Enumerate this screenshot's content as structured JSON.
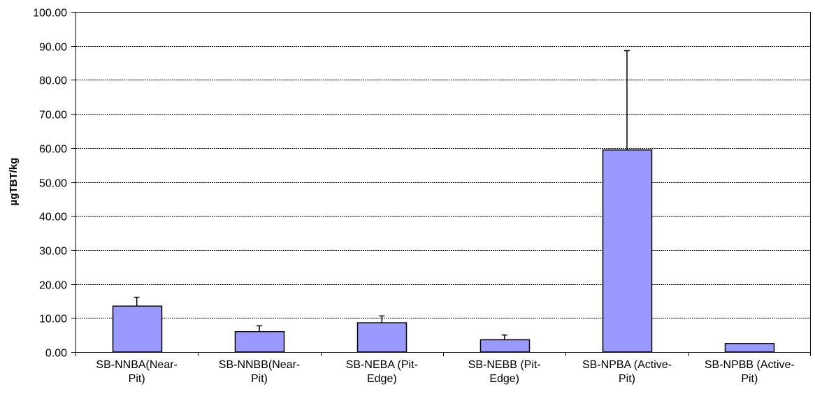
{
  "chart_data": {
    "type": "bar",
    "title": "",
    "xlabel": "",
    "ylabel": "µgTBT/kg",
    "ylim": [
      0,
      100
    ],
    "yticks": [
      "0.00",
      "10.00",
      "20.00",
      "30.00",
      "40.00",
      "50.00",
      "60.00",
      "70.00",
      "80.00",
      "90.00",
      "100.00"
    ],
    "categories": [
      [
        "SB-NNBA(Near-",
        "Pit)"
      ],
      [
        "SB-NNBB(Near-",
        "Pit)"
      ],
      [
        "SB-NEBA (Pit-",
        "Edge)"
      ],
      [
        "SB-NEBB (Pit-",
        "Edge)"
      ],
      [
        "SB-NPBA (Active-",
        "Pit)"
      ],
      [
        "SB-NPBB (Active-",
        "Pit)"
      ]
    ],
    "values": [
      13.5,
      6.0,
      8.6,
      3.6,
      59.4,
      2.5
    ],
    "error_plus": [
      2.6,
      1.7,
      2.0,
      1.4,
      29.2,
      0.0
    ],
    "grid": true,
    "bar_color": "#9999ff",
    "bar_edge_color": "#000000"
  }
}
